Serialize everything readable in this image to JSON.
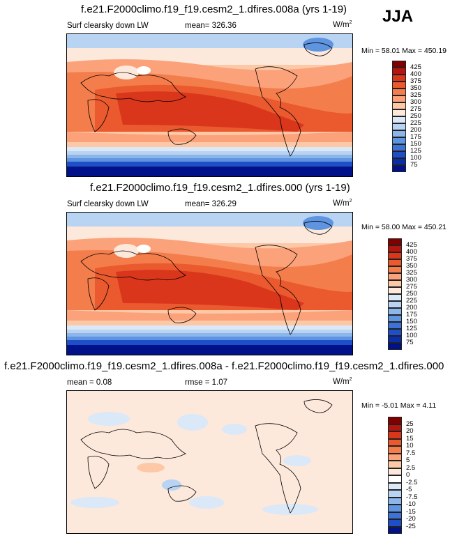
{
  "season": "JJA",
  "panels": [
    {
      "title": "f.e21.F2000climo.f19_f19.cesm2_1.dfires.008a (yrs 1-19)",
      "left_label": "Surf clearsky down LW",
      "stat_label": "mean= 326.36",
      "units": "W/m",
      "units_sup": "2",
      "minmax": "Min =  58.01 Max = 450.19"
    },
    {
      "title": "f.e21.F2000climo.f19_f19.cesm2_1.dfires.000 (yrs 1-19)",
      "left_label": "Surf clearsky down LW",
      "stat_label": "mean= 326.29",
      "units": "W/m",
      "units_sup": "2",
      "minmax": "Min =  58.00 Max = 450.21"
    },
    {
      "title": "f.e21.F2000climo.f19_f19.cesm2_1.dfires.008a - f.e21.F2000climo.f19_f19.cesm2_1.dfires.000",
      "left_label": "mean =  0.08",
      "stat_label": "rmse =  1.07",
      "units": "W/m",
      "units_sup": "2",
      "minmax": "Min = -5.01 Max =  4.11"
    }
  ],
  "chart_data": [
    {
      "type": "heatmap",
      "title": "f.e21.F2000climo.f19_f19.cesm2_1.dfires.008a (yrs 1-19)",
      "variable": "Surf clearsky down LW",
      "mean": 326.36,
      "min": 58.01,
      "max": 450.19,
      "colorbar": {
        "levels": [
          "425",
          "400",
          "375",
          "350",
          "325",
          "300",
          "275",
          "250",
          "225",
          "200",
          "175",
          "150",
          "125",
          "100",
          "75"
        ],
        "colors": [
          "#800000",
          "#b5150f",
          "#d9361c",
          "#ea5a2e",
          "#f47d4c",
          "#fba27a",
          "#fdc8a6",
          "#fde9dc",
          "#dbe8f8",
          "#b9d3f2",
          "#8cb6ea",
          "#5e94e0",
          "#3d72d6",
          "#1f4fc8",
          "#0a2ea8",
          "#00118a"
        ]
      }
    },
    {
      "type": "heatmap",
      "title": "f.e21.F2000climo.f19_f19.cesm2_1.dfires.000 (yrs 1-19)",
      "variable": "Surf clearsky down LW",
      "mean": 326.29,
      "min": 58.0,
      "max": 450.21,
      "colorbar": {
        "levels": [
          "425",
          "400",
          "375",
          "350",
          "325",
          "300",
          "275",
          "250",
          "225",
          "200",
          "175",
          "150",
          "125",
          "100",
          "75"
        ],
        "colors": [
          "#800000",
          "#b5150f",
          "#d9361c",
          "#ea5a2e",
          "#f47d4c",
          "#fba27a",
          "#fdc8a6",
          "#fde9dc",
          "#dbe8f8",
          "#b9d3f2",
          "#8cb6ea",
          "#5e94e0",
          "#3d72d6",
          "#1f4fc8",
          "#0a2ea8",
          "#00118a"
        ]
      }
    },
    {
      "type": "heatmap",
      "title": "f.e21.F2000climo.f19_f19.cesm2_1.dfires.008a - f.e21.F2000climo.f19_f19.cesm2_1.dfires.000",
      "mean": 0.08,
      "rmse": 1.07,
      "min": -5.01,
      "max": 4.11,
      "colorbar": {
        "levels": [
          "25",
          "20",
          "15",
          "10",
          "7.5",
          "5",
          "2.5",
          "0",
          "-2.5",
          "-5",
          "-7.5",
          "-10",
          "-15",
          "-20",
          "-25"
        ],
        "colors": [
          "#800000",
          "#b5150f",
          "#d9361c",
          "#ea5a2e",
          "#f47d4c",
          "#fba27a",
          "#fdc8a6",
          "#fde9dc",
          "#ffffff",
          "#dbe8f8",
          "#b9d3f2",
          "#8cb6ea",
          "#5e94e0",
          "#3d72d6",
          "#1f4fc8",
          "#00118a"
        ]
      }
    }
  ]
}
